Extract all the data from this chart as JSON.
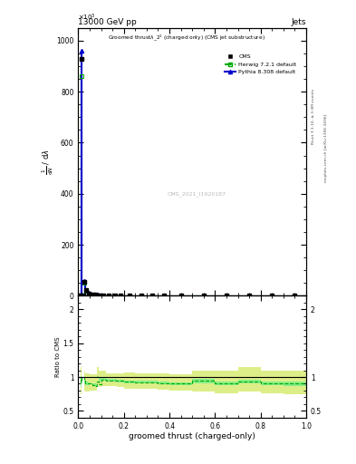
{
  "title_left": "13000 GeV pp",
  "title_right": "Jets",
  "plot_title": "Groomed thrust$\\lambda\\_2^1$ (charged only) (CMS jet substructure)",
  "xlabel": "groomed thrust (charged-only)",
  "ylabel_ratio": "Ratio to CMS",
  "watermark": "CMS_2021_I1920187",
  "rivet_label": "Rivet 3.1.10, ≥ 3.3M events",
  "arxiv_label": "mcplots.cern.ch [arXiv:1306.3436]",
  "cms_label": "CMS",
  "herwig_label": "Herwig 7.2.1 default",
  "pythia_label": "Pythia 8.308 default",
  "bins": [
    0.0,
    0.005,
    0.01,
    0.015,
    0.02,
    0.025,
    0.03,
    0.04,
    0.05,
    0.06,
    0.07,
    0.08,
    0.09,
    0.1,
    0.12,
    0.15,
    0.17,
    0.2,
    0.25,
    0.3,
    0.35,
    0.4,
    0.5,
    0.6,
    0.7,
    0.8,
    0.9,
    1.0
  ],
  "cms_y": [
    0,
    0,
    930,
    0,
    0,
    55,
    22,
    10,
    5,
    4,
    3.5,
    3,
    2.8,
    2.5,
    2.2,
    2.0,
    1.8,
    1.5,
    1.3,
    1.2,
    1.1,
    1.0,
    0.8,
    0.5,
    0.3,
    0.2,
    0.1
  ],
  "herwig_y": [
    0,
    0,
    860,
    0,
    0,
    52,
    20,
    9,
    4.5,
    3.5,
    3.0,
    2.8,
    2.5,
    2.4,
    2.1,
    1.9,
    1.7,
    1.4,
    1.2,
    1.1,
    1.0,
    0.9,
    0.75,
    0.45,
    0.28,
    0.18,
    0.09
  ],
  "pythia_y": [
    0,
    0,
    960,
    0,
    0,
    57,
    23,
    11,
    5.5,
    4.5,
    3.8,
    3.5,
    3.0,
    2.8,
    2.4,
    2.1,
    1.9,
    1.6,
    1.4,
    1.25,
    1.15,
    1.05,
    0.85,
    0.55,
    0.35,
    0.22,
    0.12
  ],
  "main_ylim": [
    0,
    1050
  ],
  "main_yticks": [
    0,
    200,
    400,
    600,
    800,
    1000
  ],
  "ratio_ylim": [
    0.4,
    2.2
  ],
  "ratio_yticks": [
    0.5,
    1.0,
    1.5,
    2.0
  ],
  "ratio_ytick_labels": [
    "0.5",
    "1",
    "1.5",
    "2"
  ],
  "ratio_herwig": [
    1.0,
    1.0,
    0.92,
    1.0,
    1.0,
    0.95,
    0.91,
    0.9,
    0.9,
    0.88,
    0.86,
    0.93,
    0.89,
    0.96,
    0.95,
    0.95,
    0.94,
    0.93,
    0.92,
    0.92,
    0.91,
    0.9,
    0.94,
    0.9,
    0.93,
    0.9,
    0.9
  ],
  "outer_lo": [
    1.0,
    1.0,
    0.75,
    1.0,
    1.0,
    0.8,
    0.78,
    0.78,
    0.8,
    0.8,
    0.8,
    0.88,
    0.85,
    0.86,
    0.86,
    0.86,
    0.85,
    0.83,
    0.82,
    0.82,
    0.81,
    0.8,
    0.78,
    0.76,
    0.78,
    0.76,
    0.74
  ],
  "outer_hi": [
    1.0,
    1.0,
    1.15,
    1.0,
    1.0,
    1.08,
    1.06,
    1.06,
    1.04,
    1.04,
    1.04,
    1.15,
    1.1,
    1.1,
    1.06,
    1.06,
    1.06,
    1.07,
    1.06,
    1.06,
    1.05,
    1.04,
    1.1,
    1.1,
    1.15,
    1.1,
    1.1
  ],
  "inner_lo": [
    1.0,
    1.0,
    0.85,
    1.0,
    1.0,
    0.9,
    0.88,
    0.88,
    0.89,
    0.88,
    0.87,
    0.98,
    0.93,
    0.94,
    0.93,
    0.93,
    0.92,
    0.91,
    0.9,
    0.9,
    0.89,
    0.88,
    0.91,
    0.88,
    0.91,
    0.88,
    0.87
  ],
  "inner_hi": [
    1.0,
    1.0,
    1.02,
    1.0,
    1.0,
    0.99,
    0.93,
    0.92,
    0.91,
    0.9,
    0.9,
    1.02,
    0.98,
    0.98,
    0.97,
    0.97,
    0.96,
    0.95,
    0.94,
    0.94,
    0.93,
    0.92,
    0.97,
    0.93,
    0.96,
    0.93,
    0.93
  ],
  "color_cms": "#000000",
  "color_herwig": "#00aa00",
  "color_pythia": "#0000cc",
  "color_herwig_inner": "#88ee88",
  "color_herwig_outer": "#ddee88",
  "background_color": "#ffffff"
}
